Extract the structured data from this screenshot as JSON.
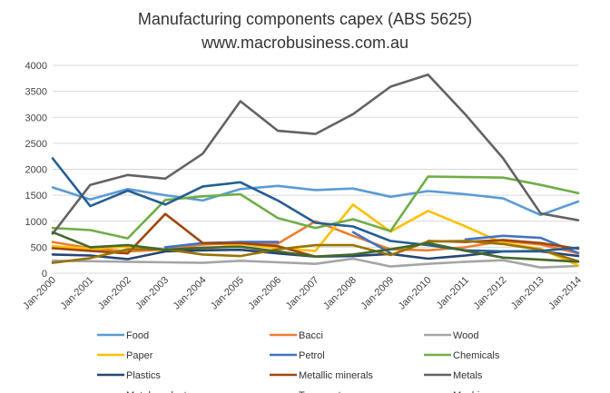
{
  "chart_data": {
    "type": "line",
    "title": "Manufacturing components capex (ABS 5625)",
    "subtitle": "www.macrobusiness.com.au",
    "xlabel": "",
    "ylabel": "",
    "ylim": [
      0,
      4000
    ],
    "yticks": [
      0,
      500,
      1000,
      1500,
      2000,
      2500,
      3000,
      3500,
      4000
    ],
    "categories": [
      "Jan-2000",
      "Jan-2001",
      "Jan-2002",
      "Jan-2003",
      "Jan-2004",
      "Jan-2005",
      "Jan-2006",
      "Jan-2007",
      "Jan-2008",
      "Jan-2009",
      "Jan-2010",
      "Jan-2011",
      "Jan-2012",
      "Jan-2013",
      "Jan-2014"
    ],
    "grid": true,
    "legend_position": "bottom",
    "series": [
      {
        "name": "Food",
        "color": "#5b9bd5",
        "values": [
          1650,
          1420,
          1620,
          1500,
          1400,
          1620,
          1680,
          1600,
          1630,
          1470,
          1580,
          1520,
          1440,
          1120,
          1380
        ]
      },
      {
        "name": "Bacci",
        "color": "#ed7d31",
        "values": [
          600,
          480,
          420,
          450,
          550,
          580,
          570,
          1000,
          720,
          460,
          440,
          500,
          620,
          550,
          380
        ]
      },
      {
        "name": "Wood",
        "color": "#a5a5a5",
        "values": [
          240,
          230,
          220,
          210,
          200,
          240,
          210,
          180,
          280,
          130,
          180,
          220,
          250,
          110,
          140
        ]
      },
      {
        "name": "Paper",
        "color": "#ffc000",
        "values": [
          520,
          470,
          510,
          430,
          460,
          560,
          480,
          430,
          1320,
          800,
          1200,
          900,
          580,
          470,
          150
        ]
      },
      {
        "name": "Petrol",
        "color": "#4472c4",
        "values": [
          null,
          null,
          null,
          500,
          580,
          600,
          600,
          null,
          790,
          390,
          null,
          650,
          720,
          680,
          390
        ]
      },
      {
        "name": "Chemicals",
        "color": "#70ad47",
        "values": [
          870,
          830,
          670,
          1410,
          1480,
          1520,
          1060,
          870,
          1040,
          810,
          1860,
          1850,
          1840,
          1700,
          1540
        ]
      },
      {
        "name": "Plastics",
        "color": "#264478",
        "values": [
          360,
          340,
          270,
          420,
          440,
          450,
          380,
          320,
          330,
          370,
          280,
          340,
          420,
          420,
          330
        ]
      },
      {
        "name": "Metallic minerals",
        "color": "#9e480e",
        "values": [
          480,
          430,
          380,
          1140,
          580,
          580,
          520,
          320,
          null,
          null,
          620,
          600,
          640,
          580,
          470
        ]
      },
      {
        "name": "Metals",
        "color": "#636363",
        "values": [
          760,
          1700,
          1890,
          1820,
          2300,
          3310,
          2740,
          2680,
          3060,
          3590,
          3820,
          3050,
          2210,
          1150,
          1020
        ]
      },
      {
        "name": "Metal product",
        "color": "#997300",
        "values": [
          200,
          290,
          460,
          460,
          360,
          330,
          460,
          540,
          540,
          350,
          610,
          620,
          560,
          450,
          230
        ]
      },
      {
        "name": "Transport",
        "color": "#255e91",
        "values": [
          2210,
          1290,
          1590,
          1320,
          1670,
          1750,
          1400,
          970,
          900,
          620,
          540,
          440,
          420,
          430,
          490
        ]
      },
      {
        "name": "Machinery",
        "color": "#43682b",
        "values": [
          790,
          500,
          540,
          450,
          490,
          510,
          420,
          320,
          360,
          460,
          580,
          430,
          300,
          260,
          220
        ]
      }
    ]
  }
}
